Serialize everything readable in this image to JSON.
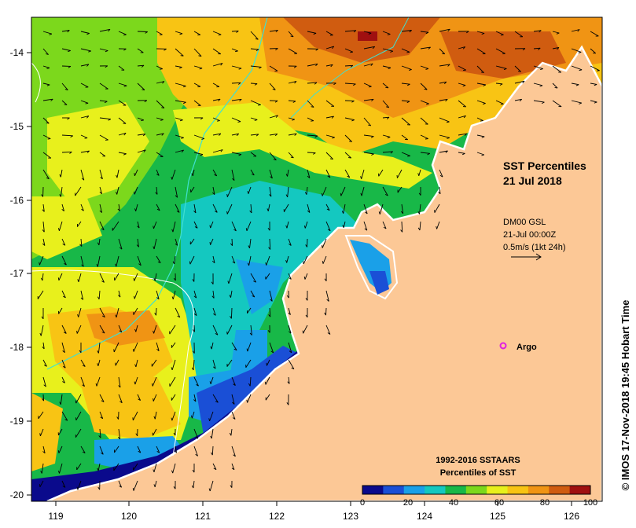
{
  "map": {
    "title_line1": "SST Percentiles",
    "title_line2": "21 Jul 2018",
    "current_info": [
      "DM00 GSL",
      "21-Jul 00:00Z",
      "0.5m/s (1kt 24h)"
    ],
    "argo_label": "Argo",
    "argo_color": "#e020e0",
    "legend_title_line1": "1992-2016 SSTAARS",
    "legend_title_line2": "Percentiles of SST",
    "legend_ticks": [
      "0",
      "20",
      "40",
      "60",
      "80",
      "100"
    ],
    "legend_colors": [
      "#0a0a8c",
      "#1a4fd6",
      "#1aa0e8",
      "#14c8c0",
      "#18b848",
      "#7cd81c",
      "#e8f01c",
      "#f8c414",
      "#f09414",
      "#d05c10",
      "#a01010"
    ],
    "credit": "© IMOS 17-Nov-2018 19:45 Hobart Time",
    "x_ticks": [
      "119",
      "120",
      "121",
      "122",
      "123",
      "124",
      "125",
      "126"
    ],
    "y_ticks": [
      "-14",
      "-15",
      "-16",
      "-17",
      "-18",
      "-19",
      "-20"
    ],
    "land_color": "#fcc896"
  }
}
